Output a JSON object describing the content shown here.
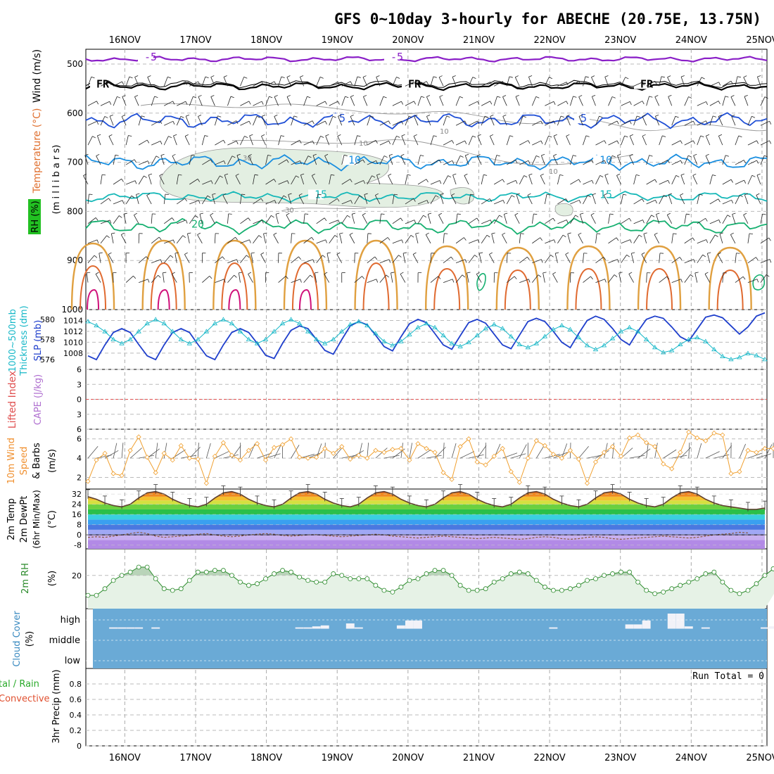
{
  "title": "GFS 0~10day 3-hourly for ABECHE (20.75E, 13.75N)",
  "date_labels": [
    "16NOV",
    "17NOV",
    "18NOV",
    "19NOV",
    "20NOV",
    "21NOV",
    "22NOV",
    "23NOV",
    "24NOV",
    "25NOV"
  ],
  "panel_labels": {
    "upper": {
      "wind": "Wind (m/s)",
      "temp": "Temperature (°C)",
      "rh": "RH (%)",
      "units": "(m i l l i b a r s)"
    },
    "thick": {
      "a": "1000~500mb",
      "b": "Thickness (dm)",
      "c": "SLP (mb)"
    },
    "li": {
      "a": "Lifted Index",
      "b": "CAPE (J/kg)"
    },
    "wind10": {
      "a": "10m Wind",
      "b": "Speed",
      "c": "& Barbs",
      "d": "(m/s)"
    },
    "temp2m": {
      "a": "2m Temp",
      "b": "2m DewPt",
      "c": "(6hr Min/Max)",
      "d": "(°C)"
    },
    "rh2m": {
      "a": "2m RH",
      "b": "(%)"
    },
    "cloud": {
      "a": "Cloud Cover",
      "b": "(%)",
      "levels": [
        "high",
        "middle",
        "low"
      ]
    },
    "precip": {
      "a": "tal / Rain",
      "b": "Convective",
      "c": "3hr Precip (mm)",
      "run_total": "Run Total = 0"
    }
  },
  "colors": {
    "temp_contour_m5": "#8a1fc7",
    "temp_contour_5": "#1f4fd6",
    "temp_contour_10": "#1a8fe0",
    "temp_contour_15": "#16b8b8",
    "temp_contour_20": "#16b070",
    "rh_fill": "#e3efe2",
    "slp": "#1f3fcc",
    "thickness": "#18b8c8",
    "wind_speed": "#f0a030",
    "cloud": "#6aaad6",
    "rh2m": "#2a8a2a"
  },
  "chart_data": [
    {
      "type": "line",
      "name_panel": "upper-air",
      "y_axis": "millibars",
      "yticks": [
        500,
        600,
        700,
        800,
        900,
        1000
      ],
      "ylim": [
        1000,
        470
      ],
      "contour_labels": [
        "-5",
        "FR",
        "5",
        "10",
        "15",
        "20",
        "10",
        "30"
      ],
      "contours": [
        {
          "label": "-5",
          "pressure": 490
        },
        {
          "label": "FR",
          "pressure": 545
        },
        {
          "label": "5",
          "pressure": 615
        },
        {
          "label": "10",
          "pressure": 700
        },
        {
          "label": "15",
          "pressure": 770
        },
        {
          "label": "20",
          "pressure": 825
        }
      ]
    },
    {
      "type": "line",
      "name_panel": "thickness-slp",
      "y_left_ticks": [
        576,
        578,
        580
      ],
      "y_right_ticks": [
        1008,
        1010,
        1012,
        1014
      ],
      "slp": [
        1007.5,
        1006.8,
        1009.5,
        1011.8,
        1012.5,
        1011.8,
        1009.6,
        1007.5,
        1006.8,
        1009.5,
        1011.8,
        1012.5,
        1011.8,
        1009.6,
        1007.5,
        1006.8,
        1009.5,
        1011.8,
        1012.5,
        1011.8,
        1009.8,
        1007.6,
        1007.0,
        1009.8,
        1012.2,
        1013.0,
        1012.5,
        1010.5,
        1008.5,
        1007.8,
        1010.5,
        1013.0,
        1013.8,
        1013.2,
        1011.3,
        1009.2,
        1008.4,
        1011.0,
        1013.4,
        1014.2,
        1013.6,
        1011.6,
        1009.5,
        1008.7,
        1011.2,
        1013.6,
        1014.2,
        1013.5,
        1011.5,
        1009.5,
        1008.8,
        1011.3,
        1013.8,
        1014.4,
        1013.8,
        1012.0,
        1010.0,
        1009.0,
        1011.6,
        1014.0,
        1014.8,
        1014.2,
        1012.5,
        1010.5,
        1009.5,
        1012.0,
        1014.2,
        1014.8,
        1014.4,
        1012.8,
        1011.0,
        1010.2,
        1012.4,
        1014.6,
        1015.0,
        1014.5,
        1013.0,
        1011.5,
        1012.8,
        1014.8,
        1015.4
      ],
      "thickness": [
        579.8,
        579.4,
        578.8,
        578.0,
        577.6,
        578.0,
        578.8,
        579.6,
        580.0,
        579.6,
        578.8,
        578.0,
        577.6,
        578.0,
        578.8,
        579.6,
        580.0,
        579.6,
        578.8,
        578.0,
        577.6,
        578.0,
        578.8,
        579.6,
        580.0,
        579.6,
        578.8,
        578.0,
        577.6,
        578.0,
        578.8,
        579.5,
        579.8,
        579.4,
        578.6,
        577.8,
        577.4,
        577.8,
        578.5,
        579.2,
        579.6,
        579.2,
        578.4,
        577.6,
        577.3,
        577.7,
        578.4,
        579.1,
        579.5,
        579.1,
        578.3,
        577.5,
        577.2,
        577.6,
        578.3,
        579.0,
        579.4,
        579.0,
        578.2,
        577.4,
        577.0,
        577.4,
        578.1,
        578.8,
        579.2,
        578.8,
        578.0,
        577.2,
        576.7,
        576.9,
        577.5,
        578.0,
        578.2,
        577.8,
        577.0,
        576.3,
        576.0,
        576.2,
        576.6,
        576.4,
        576.0
      ]
    },
    {
      "type": "line",
      "name_panel": "lifted-index",
      "yticks": [
        6,
        3,
        0,
        -3,
        -6
      ],
      "yticklabels": [
        "6",
        "3",
        "0",
        "3",
        "6"
      ],
      "lifted_index_zero_line": 0
    },
    {
      "type": "line",
      "name_panel": "10m-wind",
      "yticks": [
        2,
        4,
        6
      ],
      "ylim": [
        0.8,
        7
      ],
      "values": [
        1.6,
        3.8,
        4.5,
        2.4,
        2.2,
        4.8,
        6.2,
        4.1,
        2.5,
        4.5,
        3.8,
        5.3,
        4.0,
        3.9,
        1.4,
        4.2,
        5.6,
        4.3,
        3.8,
        4.8,
        5.5,
        3.8,
        5.1,
        5.4,
        6.0,
        4.1,
        4.0,
        4.1,
        5.0,
        4.5,
        5.2,
        3.9,
        4.3,
        4.0,
        4.8,
        4.6,
        4.9,
        5.0,
        3.8,
        5.5,
        5.0,
        4.6,
        2.5,
        1.8,
        5.2,
        6.0,
        3.6,
        3.3,
        4.2,
        5.0,
        2.6,
        1.5,
        4.0,
        5.8,
        5.3,
        4.4,
        4.0,
        4.8,
        3.9,
        1.4,
        3.6,
        4.6,
        5.2,
        4.2,
        6.1,
        6.4,
        5.6,
        5.2,
        3.4,
        2.9,
        4.6,
        6.7,
        6.1,
        5.8,
        6.6,
        6.4,
        2.4,
        2.6,
        4.8,
        4.6,
        5.0,
        5.0,
        5.2
      ]
    },
    {
      "type": "area",
      "name_panel": "2m-temp",
      "yticks": [
        -8,
        0,
        8,
        16,
        24,
        32
      ],
      "ylim": [
        -11,
        36
      ],
      "temp": [
        30,
        28,
        25,
        23,
        22,
        24,
        29,
        33,
        34,
        32,
        28,
        25,
        23,
        22,
        24,
        29,
        33,
        34,
        32,
        28,
        25,
        23,
        22,
        24,
        29,
        33,
        34,
        32,
        28,
        25,
        23,
        22,
        24,
        29,
        33,
        34,
        32,
        28,
        25,
        23,
        22,
        24,
        29,
        33,
        34,
        32,
        28,
        25,
        23,
        22,
        24,
        29,
        33,
        34,
        32,
        28,
        25,
        23,
        22,
        24,
        29,
        33,
        34,
        32,
        28,
        25,
        23,
        22,
        24,
        29,
        33,
        34,
        32,
        28,
        25,
        23,
        22,
        21,
        20,
        20,
        21
      ],
      "dewpoint": [
        -2,
        -1.5,
        -2,
        -1,
        0,
        1,
        2,
        1,
        -1,
        -2,
        -1.5,
        -1,
        -0.5,
        0.5,
        1,
        0,
        -1,
        -1.5,
        -1,
        0,
        0.5,
        1,
        0.5,
        -0.5,
        -1,
        -0.5,
        0,
        0.2,
        -0.5,
        -1,
        -1.5,
        -1,
        -0.5,
        0,
        0.5,
        0,
        -1,
        -1.5,
        -2,
        -2.5,
        -2,
        -1.5,
        -1,
        -1.5,
        -2,
        -2.5,
        -3,
        -2.5,
        -2,
        -2.5,
        -3,
        -3.5,
        -3,
        -2,
        -1.5,
        -2,
        -3,
        -3.5,
        -3,
        -2,
        -1.5,
        -2,
        -3,
        -3.5,
        -3,
        -2.5,
        -2,
        -1.5,
        -1,
        -1.5,
        -2,
        -2.5,
        -2,
        -1,
        0,
        0.5,
        1,
        2,
        1.5
      ]
    },
    {
      "type": "area",
      "name_panel": "2m-rh",
      "yticks": [
        20
      ],
      "ylim": [
        0,
        36
      ],
      "values": [
        8,
        8,
        12,
        17,
        20,
        22,
        25,
        25,
        18,
        12,
        11,
        12,
        17,
        22,
        22,
        23,
        23,
        20,
        16,
        14,
        15,
        18,
        21,
        23,
        22,
        19,
        17,
        16,
        16,
        21,
        20,
        18,
        18,
        18,
        14,
        11,
        10,
        13,
        17,
        18,
        21,
        23,
        23,
        20,
        14,
        11,
        11,
        12,
        16,
        18,
        21,
        22,
        21,
        17,
        13,
        11,
        11,
        12,
        14,
        17,
        18,
        20,
        21,
        22,
        22,
        16,
        11,
        9,
        10,
        12,
        14,
        16,
        18,
        21,
        22,
        16,
        11,
        9,
        11,
        15,
        20,
        24,
        28,
        31,
        33
      ]
    },
    {
      "type": "bar",
      "name_panel": "cloud-cover",
      "levels": [
        "high",
        "middle",
        "low"
      ],
      "high_pct": [
        0,
        0,
        0,
        5,
        5,
        5,
        5,
        0,
        5,
        0,
        0,
        0,
        0,
        0,
        0,
        0,
        0,
        0,
        0,
        0,
        0,
        0,
        0,
        0,
        0,
        5,
        5,
        10,
        15,
        0,
        0,
        25,
        5,
        0,
        0,
        0,
        0,
        15,
        40,
        40,
        0,
        0,
        0,
        0,
        0,
        0,
        0,
        0,
        0,
        0,
        0,
        0,
        0,
        0,
        0,
        5,
        0,
        0,
        0,
        0,
        0,
        0,
        0,
        0,
        20,
        20,
        40,
        0,
        0,
        75,
        75,
        10,
        0,
        5,
        0,
        0,
        0,
        0,
        0,
        0,
        5,
        10
      ],
      "middle_pct": 0,
      "low_pct": 0
    },
    {
      "type": "bar",
      "name_panel": "3hr-precip",
      "yticks": [
        0,
        0.2,
        0.4,
        0.6,
        0.8
      ],
      "ylim": [
        0,
        1
      ],
      "values": [],
      "run_total": "Run Total = 0"
    }
  ]
}
